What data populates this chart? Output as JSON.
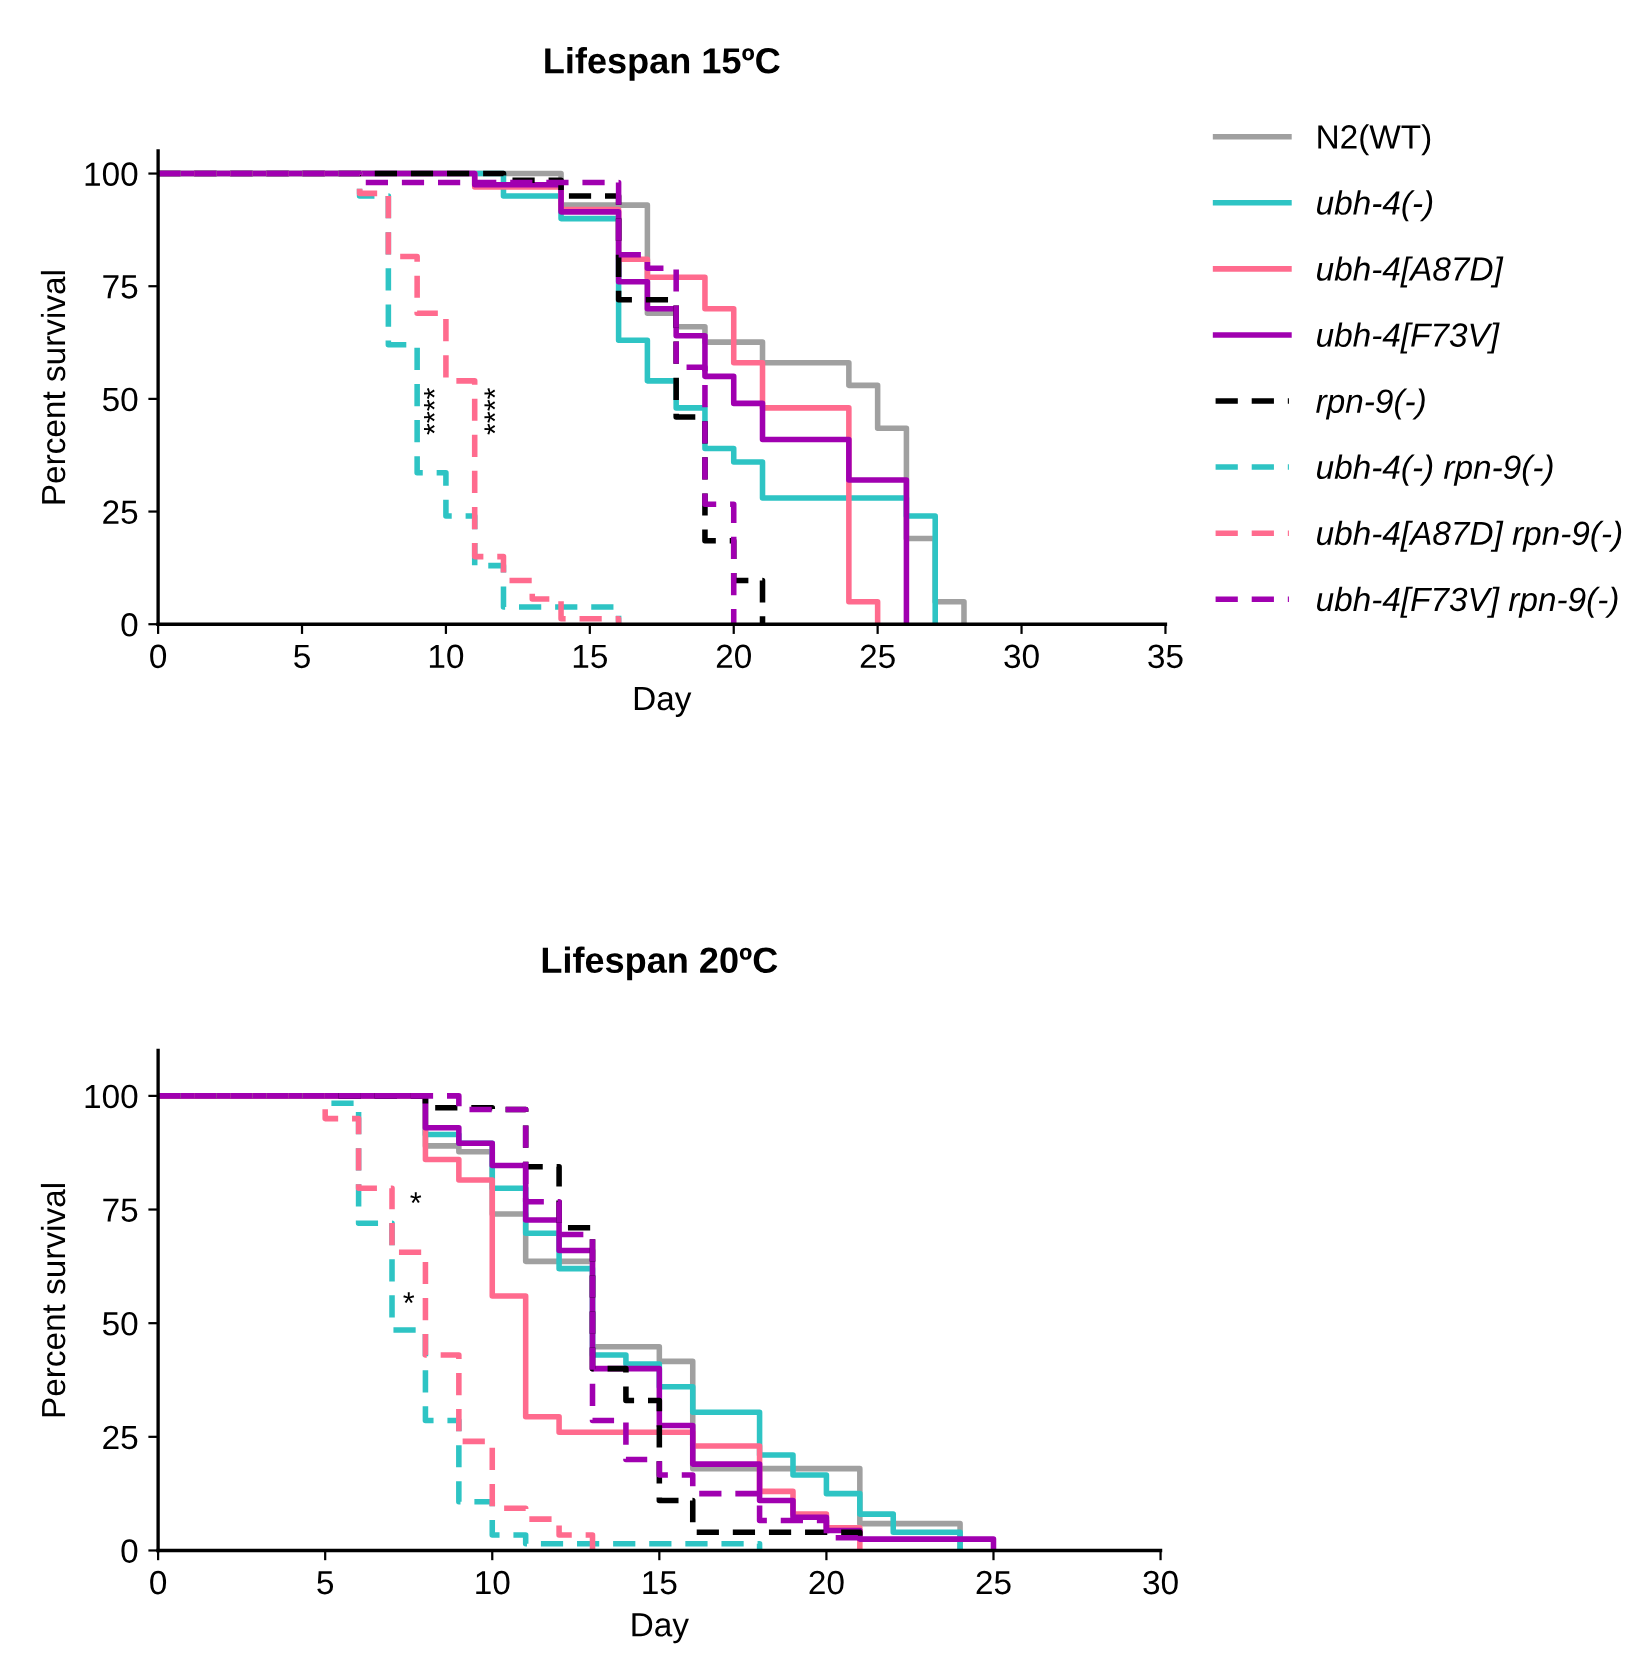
{
  "chart_data": [
    {
      "type": "step",
      "title": "Lifespan 15ºC",
      "xlabel": "Day",
      "ylabel": "Percent survival",
      "xlim": [
        0,
        35
      ],
      "xticks": [
        0,
        5,
        10,
        15,
        20,
        25,
        30,
        35
      ],
      "ylim": [
        0,
        105
      ],
      "yticks": [
        0,
        25,
        50,
        75,
        100
      ],
      "grid": false,
      "legend": "right",
      "annotations": [
        "****",
        "****"
      ],
      "series": [
        {
          "name": "N2(WT)",
          "color": "#a0a0a0",
          "line_style": "solid",
          "x": [
            0,
            14,
            17,
            18,
            19,
            21,
            24,
            25,
            26,
            27,
            28
          ],
          "values": [
            100,
            93,
            69,
            66,
            62.6,
            58,
            53,
            43.5,
            19,
            5,
            0
          ]
        },
        {
          "name": "ubh-4(-)",
          "color": "#2ec4c4",
          "line_style": "solid",
          "x": [
            0,
            12,
            14,
            16,
            17,
            18,
            19,
            20,
            21,
            26,
            27
          ],
          "values": [
            100,
            95,
            90,
            63,
            54,
            48,
            39,
            36,
            28,
            24,
            0
          ]
        },
        {
          "name": "ubh-4[A87D]",
          "color": "#ff6b8e",
          "line_style": "solid",
          "x": [
            0,
            11,
            14,
            16,
            17,
            19,
            20,
            21,
            24,
            25
          ],
          "values": [
            100,
            97,
            92,
            81,
            77,
            70,
            58,
            48,
            5,
            0
          ]
        },
        {
          "name": "ubh-4[F73V]",
          "color": "#a000b0",
          "line_style": "solid",
          "x": [
            0,
            11,
            14,
            16,
            17,
            18,
            19,
            20,
            21,
            24,
            26
          ],
          "values": [
            100,
            97.5,
            91.5,
            76,
            70,
            64,
            55,
            49,
            41,
            32,
            0
          ]
        },
        {
          "name": "rpn-9(-)",
          "color": "#000000",
          "line_style": "dashed",
          "x": [
            0,
            12,
            14,
            16,
            18,
            19,
            20,
            21
          ],
          "values": [
            100,
            98.5,
            95,
            72,
            46,
            18.5,
            9.7,
            0
          ]
        },
        {
          "name": "ubh-4(-) rpn-9(-)",
          "color": "#2ec4c4",
          "line_style": "dashed",
          "x": [
            0,
            7,
            8,
            9,
            10,
            11,
            12,
            16
          ],
          "values": [
            100,
            95,
            62,
            33.6,
            24,
            13,
            3.8,
            0
          ]
        },
        {
          "name": "ubh-4[A87D] rpn-9(-)",
          "color": "#ff6b8e",
          "line_style": "dashed",
          "x": [
            0,
            7,
            8,
            9,
            10,
            11,
            12,
            13,
            14,
            16
          ],
          "values": [
            100,
            95.6,
            81.6,
            69,
            54,
            15,
            9.7,
            5.6,
            1.2,
            0
          ]
        },
        {
          "name": "ubh-4[F73V] rpn-9(-)",
          "color": "#a000b0",
          "line_style": "dashed",
          "x": [
            0,
            7,
            16,
            17,
            18,
            19,
            20
          ],
          "values": [
            100,
            98,
            82,
            79,
            57,
            26.6,
            0
          ]
        }
      ]
    },
    {
      "type": "step",
      "title": "Lifespan 20ºC",
      "xlabel": "Day",
      "ylabel": "Percent survival",
      "xlim": [
        0,
        30
      ],
      "xticks": [
        0,
        5,
        10,
        15,
        20,
        25,
        30
      ],
      "ylim": [
        0,
        110
      ],
      "yticks": [
        0,
        25,
        50,
        75,
        100
      ],
      "grid": false,
      "annotations": [
        "*",
        "*"
      ],
      "series": [
        {
          "color": "#a0a0a0",
          "line_style": "solid",
          "x": [
            0,
            8,
            9,
            10,
            11,
            13,
            15,
            16,
            21,
            24
          ],
          "values": [
            100,
            89,
            87.7,
            74,
            63.6,
            44.8,
            41.6,
            18,
            5.9,
            0
          ]
        },
        {
          "color": "#2ec4c4",
          "line_style": "solid",
          "x": [
            0,
            8,
            9,
            10,
            11,
            12,
            13,
            14,
            15,
            16,
            18,
            19,
            20,
            21,
            22,
            24
          ],
          "values": [
            100,
            91.5,
            89.6,
            79.7,
            69.8,
            62,
            43,
            41,
            36,
            30.4,
            21,
            16.6,
            12.5,
            8,
            4,
            0
          ]
        },
        {
          "color": "#ff6b8e",
          "line_style": "solid",
          "x": [
            0,
            8,
            9,
            10,
            11,
            12,
            16,
            18,
            19,
            20,
            21
          ],
          "values": [
            100,
            86,
            81.5,
            56,
            29.4,
            26,
            23,
            13,
            8,
            5,
            0
          ]
        },
        {
          "color": "#a000b0",
          "line_style": "solid",
          "x": [
            0,
            8,
            9,
            10,
            11,
            12,
            13,
            15,
            16,
            18,
            19,
            20,
            21,
            25
          ],
          "values": [
            100,
            93,
            89.6,
            84.7,
            72.7,
            66,
            40,
            27.5,
            19,
            11,
            7.3,
            4.4,
            2.5,
            0
          ]
        },
        {
          "color": "#000000",
          "line_style": "dashed",
          "x": [
            0,
            8,
            10,
            11,
            12,
            13,
            14,
            15,
            16,
            21
          ],
          "values": [
            100,
            97.4,
            97,
            84.4,
            71,
            40,
            33,
            11,
            4,
            0
          ]
        },
        {
          "color": "#2ec4c4",
          "line_style": "dashed",
          "x": [
            0,
            5,
            6,
            7,
            8,
            9,
            10,
            11,
            18
          ],
          "values": [
            100,
            98.4,
            72,
            48.5,
            28.6,
            10.7,
            3.4,
            1.5,
            0
          ]
        },
        {
          "color": "#ff6b8e",
          "line_style": "dashed",
          "x": [
            0,
            5,
            6,
            7,
            8,
            9,
            10,
            11,
            12,
            13
          ],
          "values": [
            100,
            95,
            79.7,
            65.6,
            43,
            24,
            9.3,
            6.9,
            3.4,
            0
          ]
        },
        {
          "color": "#a000b0",
          "line_style": "dashed",
          "x": [
            0,
            9,
            11,
            12,
            13,
            14,
            15,
            16,
            18,
            20,
            21
          ],
          "values": [
            100,
            97,
            76.7,
            69.5,
            28.6,
            20,
            16.6,
            12.5,
            6.6,
            2.8,
            0
          ]
        }
      ]
    }
  ]
}
